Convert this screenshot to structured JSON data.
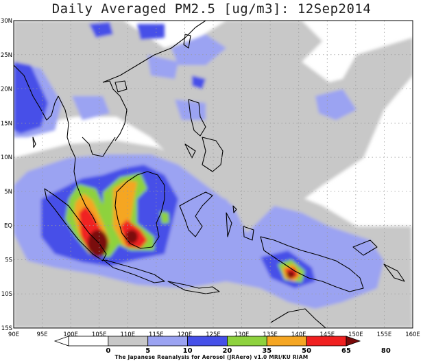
{
  "title": "Daily Averaged PM2.5 [ug/m3]: 12Sep2014",
  "credit": "The Japanese Reanalysis for Aerosol (JRAero) v1.0 MRI/KU RIAM",
  "lat_labels": [
    "30N",
    "25N",
    "20N",
    "15N",
    "10N",
    "5N",
    "EQ",
    "5S",
    "10S",
    "15S"
  ],
  "lon_labels": [
    "90E",
    "95E",
    "100E",
    "105E",
    "110E",
    "115E",
    "120E",
    "125E",
    "130E",
    "135E",
    "140E",
    "145E",
    "150E",
    "155E",
    "160E"
  ],
  "colorbar": {
    "ticks": [
      "0",
      "5",
      "10",
      "20",
      "35",
      "50",
      "65",
      "80"
    ],
    "colors": [
      "#ffffff",
      "#ffffff",
      "#c8c8c8",
      "#9ba3f2",
      "#4650e8",
      "#8ed23e",
      "#f5a623",
      "#f02020",
      "#7a0a0a"
    ]
  }
}
